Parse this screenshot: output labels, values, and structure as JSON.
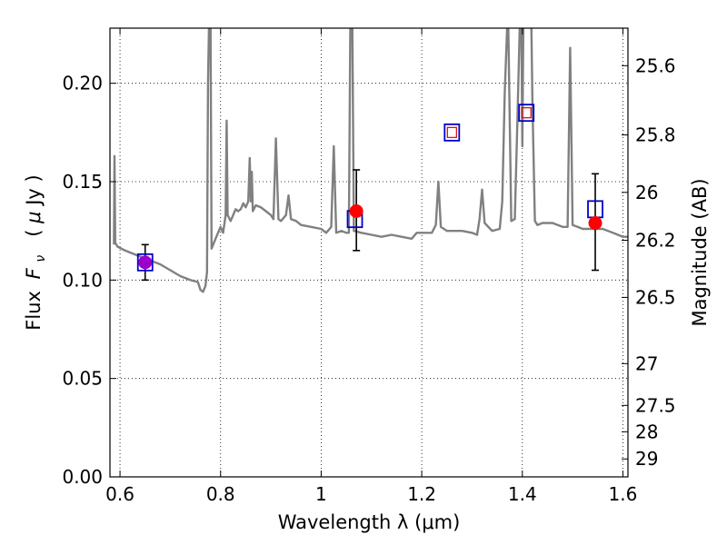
{
  "chart_data": {
    "type": "line",
    "xlabel": "Wavelength  λ (μm)",
    "ylabel_text": "Flux",
    "ylabel_symbol_main": "F",
    "ylabel_symbol_sub": "ν",
    "ylabel_unit_open": "  (",
    "ylabel_unit_mu": "μ",
    "ylabel_unit_rest": "Jy )",
    "y2label": "Magnitude (AB)",
    "xlim": [
      0.58,
      1.61
    ],
    "ylim": [
      0.0,
      0.228
    ],
    "grid": true,
    "grid_style": "dotted",
    "x_ticks": [
      {
        "value": 0.6,
        "label": "0.6"
      },
      {
        "value": 0.8,
        "label": "0.8"
      },
      {
        "value": 1.0,
        "label": "1"
      },
      {
        "value": 1.2,
        "label": "1.2"
      },
      {
        "value": 1.4,
        "label": "1.4"
      },
      {
        "value": 1.6,
        "label": "1.6"
      }
    ],
    "y_ticks": [
      {
        "value": 0.0,
        "label": "0.00"
      },
      {
        "value": 0.05,
        "label": "0.05"
      },
      {
        "value": 0.1,
        "label": "0.10"
      },
      {
        "value": 0.15,
        "label": "0.15"
      },
      {
        "value": 0.2,
        "label": "0.20"
      }
    ],
    "y2_ticks": [
      {
        "mag": 25.6,
        "label": "25.6"
      },
      {
        "mag": 25.8,
        "label": "25.8"
      },
      {
        "mag": 26.0,
        "label": "26"
      },
      {
        "mag": 26.2,
        "label": "26.2"
      },
      {
        "mag": 26.5,
        "label": "26.5"
      },
      {
        "mag": 27.0,
        "label": "27"
      },
      {
        "mag": 27.5,
        "label": "27.5"
      },
      {
        "mag": 28.0,
        "label": "28"
      },
      {
        "mag": 29.0,
        "label": "29"
      }
    ],
    "spectrum": {
      "color": "#808080",
      "points": [
        [
          0.588,
          0.118
        ],
        [
          0.589,
          0.163
        ],
        [
          0.5905,
          0.119
        ],
        [
          0.595,
          0.117
        ],
        [
          0.61,
          0.115
        ],
        [
          0.63,
          0.113
        ],
        [
          0.65,
          0.111
        ],
        [
          0.68,
          0.108
        ],
        [
          0.7,
          0.105
        ],
        [
          0.72,
          0.102
        ],
        [
          0.74,
          0.1
        ],
        [
          0.755,
          0.099
        ],
        [
          0.76,
          0.095
        ],
        [
          0.765,
          0.094
        ],
        [
          0.77,
          0.097
        ],
        [
          0.773,
          0.104
        ],
        [
          0.775,
          0.2
        ],
        [
          0.777,
          0.23
        ],
        [
          0.78,
          0.23
        ],
        [
          0.782,
          0.116
        ],
        [
          0.79,
          0.121
        ],
        [
          0.8,
          0.127
        ],
        [
          0.805,
          0.124
        ],
        [
          0.81,
          0.133
        ],
        [
          0.812,
          0.181
        ],
        [
          0.814,
          0.133
        ],
        [
          0.82,
          0.13
        ],
        [
          0.83,
          0.136
        ],
        [
          0.835,
          0.135
        ],
        [
          0.84,
          0.136
        ],
        [
          0.845,
          0.139
        ],
        [
          0.85,
          0.137
        ],
        [
          0.855,
          0.14
        ],
        [
          0.858,
          0.162
        ],
        [
          0.86,
          0.14
        ],
        [
          0.862,
          0.155
        ],
        [
          0.864,
          0.135
        ],
        [
          0.87,
          0.138
        ],
        [
          0.88,
          0.137
        ],
        [
          0.89,
          0.135
        ],
        [
          0.9,
          0.133
        ],
        [
          0.905,
          0.131
        ],
        [
          0.91,
          0.172
        ],
        [
          0.915,
          0.131
        ],
        [
          0.92,
          0.13
        ],
        [
          0.93,
          0.133
        ],
        [
          0.935,
          0.143
        ],
        [
          0.94,
          0.131
        ],
        [
          0.95,
          0.13
        ],
        [
          0.96,
          0.128
        ],
        [
          0.98,
          0.127
        ],
        [
          1.0,
          0.126
        ],
        [
          1.01,
          0.124
        ],
        [
          1.02,
          0.127
        ],
        [
          1.025,
          0.168
        ],
        [
          1.03,
          0.124
        ],
        [
          1.04,
          0.125
        ],
        [
          1.05,
          0.124
        ],
        [
          1.055,
          0.124
        ],
        [
          1.058,
          0.23
        ],
        [
          1.062,
          0.23
        ],
        [
          1.065,
          0.125
        ],
        [
          1.08,
          0.124
        ],
        [
          1.1,
          0.123
        ],
        [
          1.12,
          0.122
        ],
        [
          1.14,
          0.123
        ],
        [
          1.16,
          0.122
        ],
        [
          1.18,
          0.121
        ],
        [
          1.19,
          0.124
        ],
        [
          1.2,
          0.124
        ],
        [
          1.22,
          0.124
        ],
        [
          1.228,
          0.128
        ],
        [
          1.233,
          0.15
        ],
        [
          1.238,
          0.127
        ],
        [
          1.25,
          0.125
        ],
        [
          1.28,
          0.125
        ],
        [
          1.3,
          0.124
        ],
        [
          1.31,
          0.123
        ],
        [
          1.315,
          0.131
        ],
        [
          1.32,
          0.146
        ],
        [
          1.325,
          0.129
        ],
        [
          1.34,
          0.125
        ],
        [
          1.355,
          0.126
        ],
        [
          1.36,
          0.14
        ],
        [
          1.365,
          0.195
        ],
        [
          1.37,
          0.23
        ],
        [
          1.372,
          0.23
        ],
        [
          1.378,
          0.13
        ],
        [
          1.385,
          0.131
        ],
        [
          1.39,
          0.18
        ],
        [
          1.395,
          0.23
        ],
        [
          1.398,
          0.23
        ],
        [
          1.4,
          0.168
        ],
        [
          1.402,
          0.23
        ],
        [
          1.405,
          0.23
        ],
        [
          1.41,
          0.23
        ],
        [
          1.418,
          0.23
        ],
        [
          1.42,
          0.19
        ],
        [
          1.425,
          0.13
        ],
        [
          1.43,
          0.128
        ],
        [
          1.44,
          0.129
        ],
        [
          1.46,
          0.129
        ],
        [
          1.48,
          0.127
        ],
        [
          1.49,
          0.127
        ],
        [
          1.495,
          0.218
        ],
        [
          1.5,
          0.128
        ],
        [
          1.51,
          0.127
        ],
        [
          1.52,
          0.126
        ],
        [
          1.54,
          0.126
        ],
        [
          1.56,
          0.126
        ],
        [
          1.58,
          0.124
        ],
        [
          1.6,
          0.122
        ],
        [
          1.61,
          0.122
        ]
      ]
    },
    "model_points": {
      "marker": "open-square",
      "color": "#0000cc",
      "values": [
        [
          0.65,
          0.109
        ],
        [
          1.067,
          0.131
        ],
        [
          1.26,
          0.175
        ],
        [
          1.408,
          0.185
        ],
        [
          1.545,
          0.136
        ]
      ]
    },
    "model_points_inner": {
      "marker": "open-square-small",
      "color": "#e00000",
      "values": [
        [
          1.26,
          0.175
        ],
        [
          1.408,
          0.185
        ]
      ]
    },
    "observed": {
      "marker": "filled-circle",
      "color": "#ff0000",
      "values": [
        {
          "x": 0.65,
          "y": 0.109,
          "ylow": 0.1,
          "yhigh": 0.118,
          "color": "#9900cc"
        },
        {
          "x": 1.07,
          "y": 0.135,
          "ylow": 0.115,
          "yhigh": 0.156,
          "color": "#ff0000"
        },
        {
          "x": 1.545,
          "y": 0.129,
          "ylow": 0.105,
          "yhigh": 0.154,
          "color": "#ff0000"
        }
      ]
    }
  }
}
